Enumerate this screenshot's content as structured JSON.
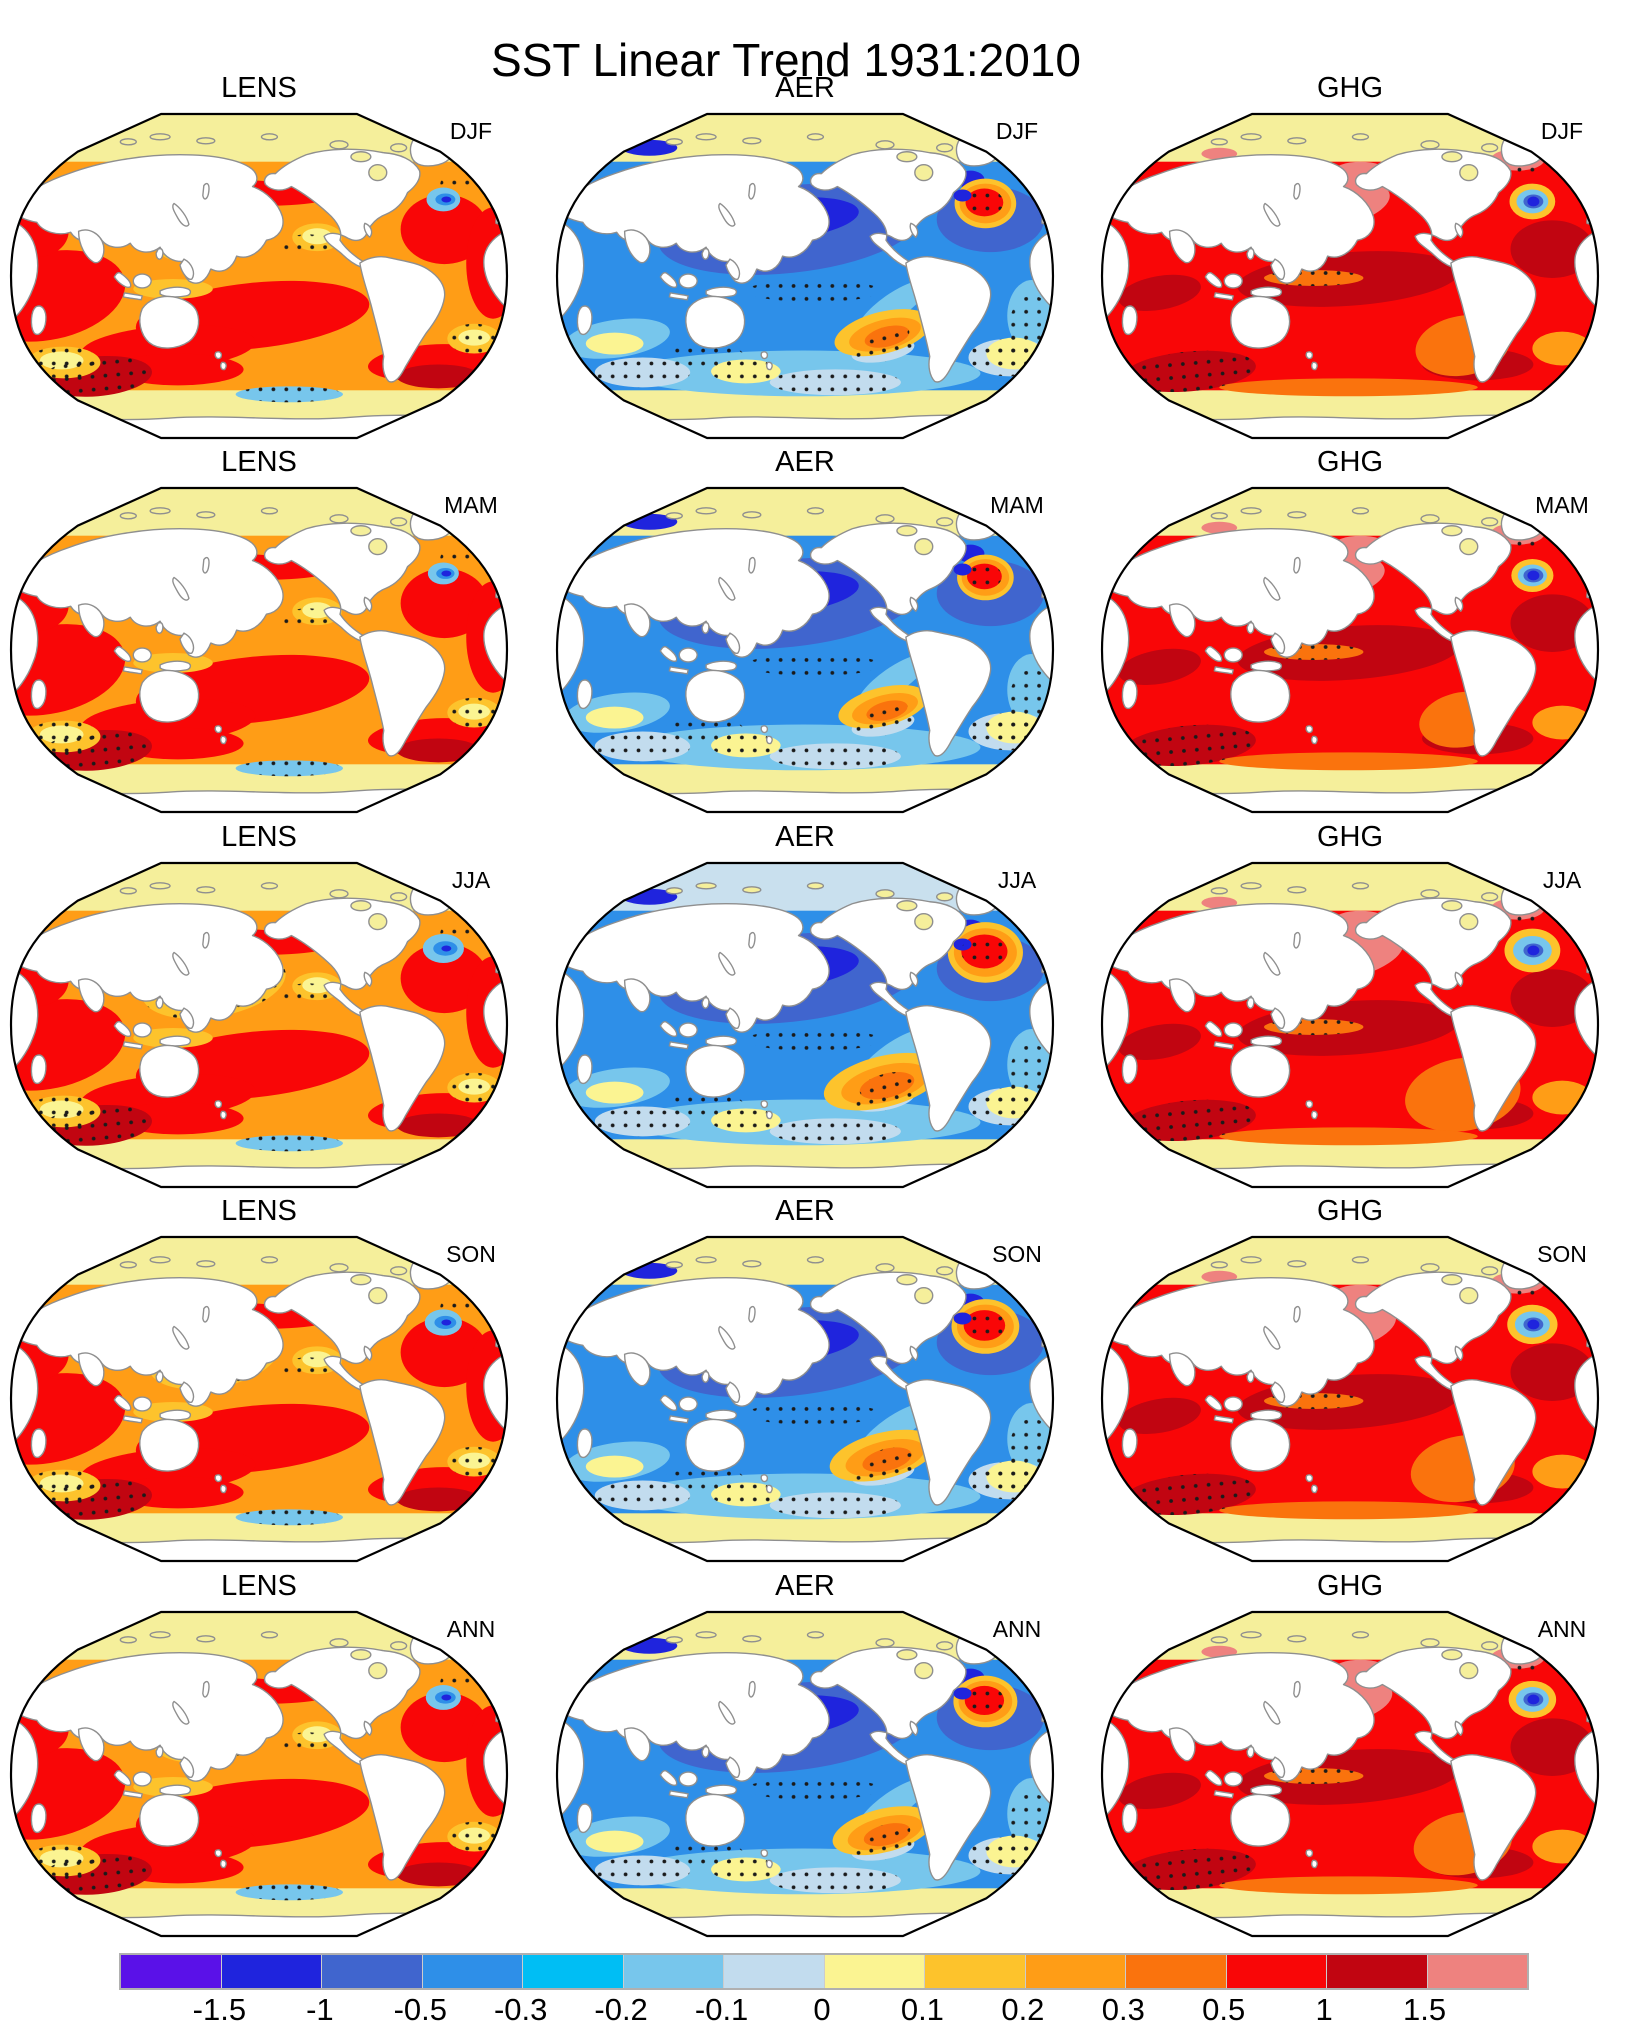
{
  "title": "SST Linear Trend 1931:2010",
  "columns": [
    "LENS",
    "AER",
    "GHG"
  ],
  "rows": [
    "DJF",
    "MAM",
    "JJA",
    "SON",
    "ANN"
  ],
  "panels": [
    {
      "model": "LENS",
      "season": "DJF"
    },
    {
      "model": "AER",
      "season": "DJF"
    },
    {
      "model": "GHG",
      "season": "DJF"
    },
    {
      "model": "LENS",
      "season": "MAM"
    },
    {
      "model": "AER",
      "season": "MAM"
    },
    {
      "model": "GHG",
      "season": "MAM"
    },
    {
      "model": "LENS",
      "season": "JJA"
    },
    {
      "model": "AER",
      "season": "JJA"
    },
    {
      "model": "GHG",
      "season": "JJA"
    },
    {
      "model": "LENS",
      "season": "SON"
    },
    {
      "model": "AER",
      "season": "SON"
    },
    {
      "model": "GHG",
      "season": "SON"
    },
    {
      "model": "LENS",
      "season": "ANN"
    },
    {
      "model": "AER",
      "season": "ANN"
    },
    {
      "model": "GHG",
      "season": "ANN"
    }
  ],
  "colorbar": {
    "tick_labels": [
      "-1.5",
      "-1",
      "-0.5",
      "-0.3",
      "-0.2",
      "-0.1",
      "0",
      "0.1",
      "0.2",
      "0.3",
      "0.5",
      "1",
      "1.5"
    ],
    "segment_colors": [
      "#5a11e8",
      "#1f24dd",
      "#4065ce",
      "#2e8fe8",
      "#00bef4",
      "#77c6ec",
      "#c2dcee",
      "#fbf492",
      "#fdc32c",
      "#ff9d16",
      "#fa730d",
      "#f90607",
      "#c10511",
      "#ee827f"
    ],
    "border_color": "#b0b0b0"
  },
  "map_colors": {
    "land": "#ffffff",
    "coastline": "#8f8f8f",
    "polar_band": "#f5ef9b",
    "polar_band_aer_jja": "#c9e0ee",
    "map_outline": "#000000",
    "stipple_dot": "#1a1a1a"
  },
  "chart_data": {
    "type": "heatmap",
    "title": "SST Linear Trend 1931:2010",
    "grid": {
      "columns": [
        "LENS",
        "AER",
        "GHG"
      ],
      "rows": [
        "DJF",
        "MAM",
        "JJA",
        "SON",
        "ANN"
      ],
      "description": "15 global ocean maps (Pacific-centered, Robinson-style outline); columns are experiments, rows are seasons plus annual mean"
    },
    "colorbar_levels": [
      -1.5,
      -1,
      -0.5,
      -0.3,
      -0.2,
      -0.1,
      0,
      0.1,
      0.2,
      0.3,
      0.5,
      1,
      1.5
    ],
    "colorbar_colors": [
      "#5a11e8",
      "#1f24dd",
      "#4065ce",
      "#2e8fe8",
      "#00bef4",
      "#77c6ec",
      "#c2dcee",
      "#fbf492",
      "#fdc32c",
      "#ff9d16",
      "#fa730d",
      "#f90607",
      "#c10511",
      "#ee827f"
    ],
    "legend_position": "bottom",
    "panel_summaries": {
      "LENS": "Broad positive trends (about 0.1 to 1) over most oceans; weak stippled yellow patch in the central North Pacific; small blue patch south of Greenland; strongest warming in the Indian Ocean, tropical/South Pacific and western boundary currents; dark-red stippled maxima in the far South Indian Ocean and near southern South America.",
      "AER": "Broad negative trends (about -0.5 to -0.1) over most oceans, deepest (below -1) in the central North Pacific; intense positive hotspot (above 1) south of Greenland; positive patch (0.2 to 0.5) in the southeast tropical Pacific; pale stippled weak-trend patches across the Southern Ocean and South Atlantic.",
      "GHG": "Near-uniform strong positive trends (0.5 to 1.5) over all oceans; dark-red maxima along the equatorial Pacific, North Atlantic and parts of the Southern Ocean; salmon (above 1.5) patch in the northwest/central North Pacific; isolated blue negative blob south of Greenland ringed by yellow and orange."
    },
    "stippling": "small black dots overlay selected regions of every panel",
    "polar_bands": "pale-yellow bands border the Arctic and Antarctic edges of each map (pale blue in AER JJA Arctic)"
  }
}
